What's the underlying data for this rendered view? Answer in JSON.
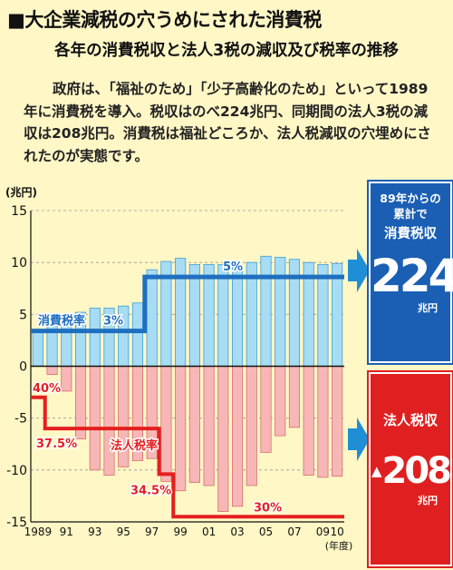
{
  "title": "■大企業減税の穴うめにされた消費税",
  "subtitle": "各年の消費税収と法人3税の減収及び税率の推移",
  "description": "政府は、「福祉のため」「少子高齢化のため」といって1989年に消費税を導入。税収はのべ224兆円、同期間の法人3税の減収は208兆円。消費税は福祉どころか、法人税減収の穴埋めにされたのが実態です。",
  "boxes": {
    "consumption": {
      "line1": "89年からの",
      "line2": "累計で",
      "label": "消費税収",
      "total": "224",
      "unit": "兆円"
    },
    "corporate": {
      "label": "法人税収",
      "mark": "▲",
      "total": "208",
      "unit": "兆円"
    }
  },
  "colors": {
    "consumption_bar": "#a8dcf5",
    "consumption_bar_edge": "#3d9fd4",
    "corporate_bar": "#f7b7b7",
    "corporate_bar_edge": "#d97070",
    "consumption_rate_line": "#1f6fc0",
    "corporate_rate_line": "#e41f1f",
    "blue_box": "#1a5fb4",
    "red_box": "#e02020",
    "background": "#fff7c6"
  },
  "chart_data": {
    "type": "bar",
    "ylabel": "(兆円)",
    "xlabel": "(年度)",
    "ylim": [
      -15,
      15
    ],
    "yticks": [
      15,
      10,
      5,
      0,
      -5,
      -10,
      -15
    ],
    "years": [
      1989,
      1990,
      1991,
      1992,
      1993,
      1994,
      1995,
      1996,
      1997,
      1998,
      1999,
      2000,
      2001,
      2002,
      2003,
      2004,
      2005,
      2006,
      2007,
      2008,
      2009,
      2010
    ],
    "xtick_labels": [
      "1989",
      "91",
      "93",
      "95",
      "97",
      "99",
      "01",
      "03",
      "05",
      "07",
      "09",
      "10"
    ],
    "xtick_years": [
      1989,
      1991,
      1993,
      1995,
      1997,
      1999,
      2001,
      2003,
      2005,
      2007,
      2009,
      2010
    ],
    "series": [
      {
        "name": "消費税収",
        "values": [
          3.3,
          4.6,
          5.0,
          5.2,
          5.6,
          5.6,
          5.8,
          6.1,
          9.3,
          10.1,
          10.4,
          9.8,
          9.8,
          9.8,
          9.7,
          10.0,
          10.6,
          10.5,
          10.3,
          10.0,
          9.8,
          9.9
        ]
      },
      {
        "name": "法人3税減収",
        "values": [
          0.0,
          -0.8,
          -2.4,
          -7.0,
          -10.0,
          -10.5,
          -9.7,
          -9.1,
          -8.9,
          -11.1,
          -12.0,
          -11.2,
          -11.5,
          -14.0,
          -13.5,
          -11.5,
          -8.3,
          -6.7,
          -5.9,
          -10.5,
          -10.7,
          -10.6
        ]
      }
    ],
    "rate_lines": [
      {
        "name": "消費税率",
        "label": "消費税率",
        "segments": [
          {
            "from": 1988.5,
            "to": 1996.5,
            "rate_label": "3%",
            "y": 3.4
          },
          {
            "from": 1996.5,
            "to": 2010.5,
            "rate_label": "5%",
            "y": 8.6
          }
        ]
      },
      {
        "name": "法人税率",
        "label": "法人税率",
        "segments": [
          {
            "from": 1988.5,
            "to": 1989.5,
            "rate_label": "40%",
            "y": -3.0
          },
          {
            "from": 1989.5,
            "to": 1997.5,
            "rate_label": "37.5%",
            "y": -6.0
          },
          {
            "from": 1997.5,
            "to": 1998.5,
            "rate_label": "34.5%",
            "y": -10.4
          },
          {
            "from": 1998.5,
            "to": 2010.5,
            "rate_label": "30%",
            "y": -14.5
          }
        ]
      }
    ]
  }
}
